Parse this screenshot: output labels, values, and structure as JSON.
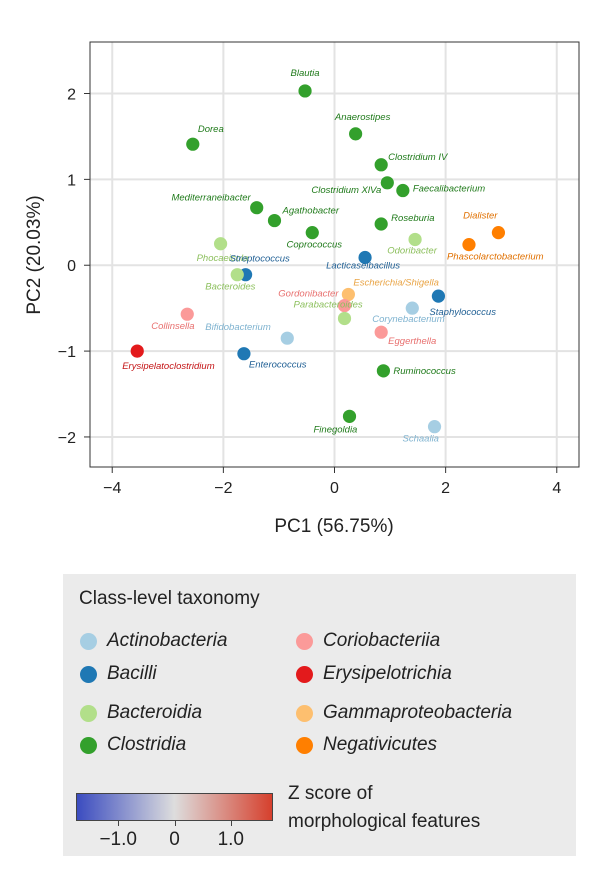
{
  "chart_data": {
    "type": "scatter",
    "xlabel": "PC1 (56.75%)",
    "ylabel": "PC2 (20.03%)",
    "xlim": [
      -4.4,
      4.4
    ],
    "ylim": [
      -2.35,
      2.6
    ],
    "xticks": [
      "−4",
      "−2",
      "0",
      "2",
      "4"
    ],
    "yticks": [
      "2",
      "1",
      "0",
      "−1",
      "−2"
    ],
    "xtick_values": [
      -4,
      -2,
      0,
      2,
      4
    ],
    "ytick_values": [
      2,
      1,
      0,
      -1,
      -2
    ],
    "grid": true,
    "points": [
      {
        "label": "Blautia",
        "x": -0.53,
        "y": 2.03,
        "class": "Clostridia"
      },
      {
        "label": "Dorea",
        "x": -2.55,
        "y": 1.41,
        "class": "Clostridia"
      },
      {
        "label": "Anaerostipes",
        "x": 0.38,
        "y": 1.53,
        "class": "Clostridia"
      },
      {
        "label": "Clostridium IV",
        "x": 0.84,
        "y": 1.17,
        "class": "Clostridia"
      },
      {
        "label": "Clostridium XlVa",
        "x": 0.95,
        "y": 0.96,
        "class": "Clostridia"
      },
      {
        "label": "Faecalibacterium",
        "x": 1.23,
        "y": 0.87,
        "class": "Clostridia"
      },
      {
        "label": "Mediterraneibacter",
        "x": -1.4,
        "y": 0.67,
        "class": "Clostridia"
      },
      {
        "label": "Agathobacter",
        "x": -1.08,
        "y": 0.52,
        "class": "Clostridia"
      },
      {
        "label": "Roseburia",
        "x": 0.84,
        "y": 0.48,
        "class": "Clostridia"
      },
      {
        "label": "Coprococcus",
        "x": -0.4,
        "y": 0.38,
        "class": "Clostridia"
      },
      {
        "label": "Odoribacter",
        "x": 1.45,
        "y": 0.3,
        "class": "Bacteroidia"
      },
      {
        "label": "Dialister",
        "x": 2.95,
        "y": 0.38,
        "class": "Negativicutes"
      },
      {
        "label": "Phascolarctobacterium",
        "x": 2.42,
        "y": 0.24,
        "class": "Negativicutes"
      },
      {
        "label": "Phocaeicola",
        "x": -2.05,
        "y": 0.25,
        "class": "Bacteroidia"
      },
      {
        "label": "Lacticaseibacillus",
        "x": 0.55,
        "y": 0.09,
        "class": "Bacilli"
      },
      {
        "label": "Streptococcus",
        "x": -1.6,
        "y": -0.11,
        "class": "Bacilli"
      },
      {
        "label": "Bacteroides",
        "x": -1.75,
        "y": -0.11,
        "class": "Bacteroidia"
      },
      {
        "label": "Escherichia/Shigella",
        "x": 0.25,
        "y": -0.34,
        "class": "Gammaproteobacteria"
      },
      {
        "label": "Gordonibacter",
        "x": 0.18,
        "y": -0.47,
        "class": "Coriobacteriia"
      },
      {
        "label": "Staphylococcus",
        "x": 1.87,
        "y": -0.36,
        "class": "Bacilli"
      },
      {
        "label": "Corynebacterium",
        "x": 1.4,
        "y": -0.5,
        "class": "Actinobacteria"
      },
      {
        "label": "Collinsella",
        "x": -2.65,
        "y": -0.57,
        "class": "Coriobacteriia"
      },
      {
        "label": "Parabacteroides",
        "x": 0.18,
        "y": -0.62,
        "class": "Bacteroidia"
      },
      {
        "label": "Bifidobacterium",
        "x": -0.85,
        "y": -0.85,
        "class": "Actinobacteria"
      },
      {
        "label": "Eggerthella",
        "x": 0.84,
        "y": -0.78,
        "class": "Coriobacteriia"
      },
      {
        "label": "Erysipelatoclostridium",
        "x": -3.55,
        "y": -1.0,
        "class": "Erysipelotrichia"
      },
      {
        "label": "Enterococcus",
        "x": -1.63,
        "y": -1.03,
        "class": "Bacilli"
      },
      {
        "label": "Ruminococcus",
        "x": 0.88,
        "y": -1.23,
        "class": "Clostridia"
      },
      {
        "label": "Finegoldia",
        "x": 0.27,
        "y": -1.76,
        "class": "Clostridia"
      },
      {
        "label": "Schaalia",
        "x": 1.8,
        "y": -1.88,
        "class": "Actinobacteria"
      }
    ]
  },
  "legend": {
    "title": "Class-level taxonomy",
    "items": [
      {
        "name": "Actinobacteria",
        "color": "#a6cee3"
      },
      {
        "name": "Bacilli",
        "color": "#1f78b4"
      },
      {
        "name": "Bacteroidia",
        "color": "#b2df8a"
      },
      {
        "name": "Clostridia",
        "color": "#33a02c"
      },
      {
        "name": "Coriobacteriia",
        "color": "#fb9a99"
      },
      {
        "name": "Erysipelotrichia",
        "color": "#e31a1c"
      },
      {
        "name": "Gammaproteobacteria",
        "color": "#fdbf6f"
      },
      {
        "name": "Negativicutes",
        "color": "#ff7f00"
      }
    ]
  },
  "colorbar": {
    "title_line1": "Z score of",
    "title_line2": "morphological features",
    "ticks": [
      "−1.0",
      "0",
      "1.0"
    ],
    "tick_values": [
      -1.0,
      0,
      1.0
    ],
    "range": [
      -1.75,
      1.75
    ],
    "colors": [
      "#3b4cc0",
      "#dddddd",
      "#d6402d"
    ]
  }
}
